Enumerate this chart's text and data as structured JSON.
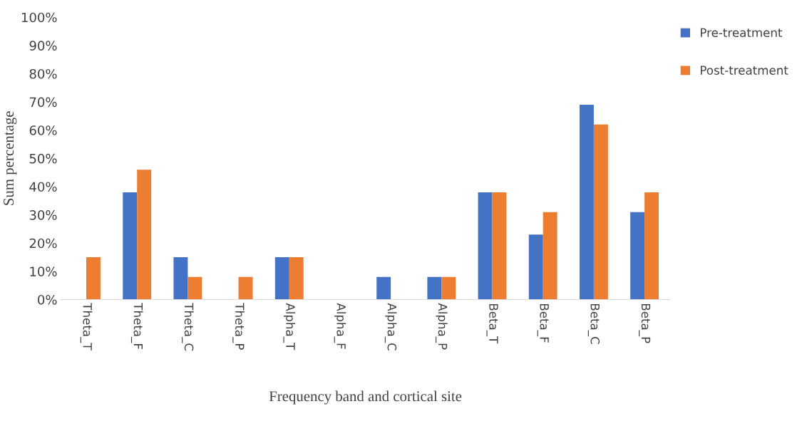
{
  "chart_data": {
    "type": "bar",
    "xlabel": "Frequency band and cortical site",
    "ylabel": "Sum percentage",
    "categories": [
      "Theta_T",
      "Theta_F",
      "Theta_C",
      "Theta_P",
      "Alpha_T",
      "Alpha_F",
      "Alpha_C",
      "Alpha_P",
      "Beta_T",
      "Beta_F",
      "Beta_C",
      "Beta_P"
    ],
    "series": [
      {
        "name": "Pre-treatment",
        "color": "#4472c4",
        "values": [
          0,
          38,
          15,
          0,
          15,
          0,
          8,
          8,
          38,
          23,
          69,
          31
        ]
      },
      {
        "name": "Post-treatment",
        "color": "#ed7d31",
        "values": [
          15,
          46,
          8,
          8,
          15,
          0,
          0,
          8,
          38,
          31,
          62,
          38
        ]
      }
    ],
    "ylim": [
      0,
      100
    ],
    "yticks": [
      {
        "value": 0,
        "label": "0%"
      },
      {
        "value": 10,
        "label": "10%"
      },
      {
        "value": 20,
        "label": "20%"
      },
      {
        "value": 30,
        "label": "30%"
      },
      {
        "value": 40,
        "label": "40%"
      },
      {
        "value": 50,
        "label": "50%"
      },
      {
        "value": 60,
        "label": "60%"
      },
      {
        "value": 70,
        "label": "70%"
      },
      {
        "value": 80,
        "label": "80%"
      },
      {
        "value": 90,
        "label": "90%"
      },
      {
        "value": 100,
        "label": "100%"
      }
    ],
    "grid": false,
    "legend": "top right"
  }
}
